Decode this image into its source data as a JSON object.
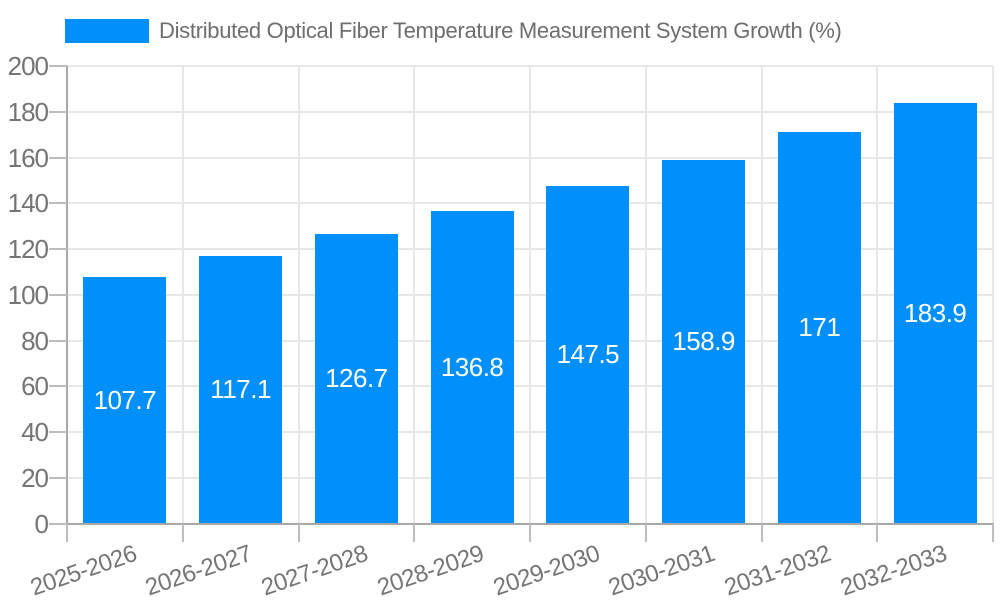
{
  "chart_data": {
    "type": "bar",
    "title": "Distributed Optical Fiber Temperature Measurement System Growth (%)",
    "categories": [
      "2025-2026",
      "2026-2027",
      "2027-2028",
      "2028-2029",
      "2029-2030",
      "2030-2031",
      "2031-2032",
      "2032-2033"
    ],
    "series": [
      {
        "name": "Distributed Optical Fiber Temperature Measurement System Growth (%)",
        "values": [
          107.7,
          117.1,
          126.7,
          136.8,
          147.5,
          158.9,
          171,
          183.9
        ]
      }
    ],
    "value_labels": [
      "107.7",
      "117.1",
      "126.7",
      "136.8",
      "147.5",
      "158.9",
      "171",
      "183.9"
    ],
    "xlabel": "",
    "ylabel": "",
    "yaxis": {
      "min": 0,
      "max": 200,
      "tick_step": 20,
      "ticks": [
        0,
        20,
        40,
        60,
        80,
        100,
        120,
        140,
        160,
        180,
        200
      ]
    },
    "grid": {
      "horizontal": true,
      "vertical": true
    },
    "legend_position": "top",
    "colors": {
      "bar": "#008FFB",
      "grid": "#e7e7e7",
      "axis": "#a8a8a8",
      "tick": "#bdbdbd",
      "label_text": "#757575",
      "title_text": "#6e6e6e",
      "value_label_text": "#ffffff",
      "background": "#ffffff"
    }
  }
}
